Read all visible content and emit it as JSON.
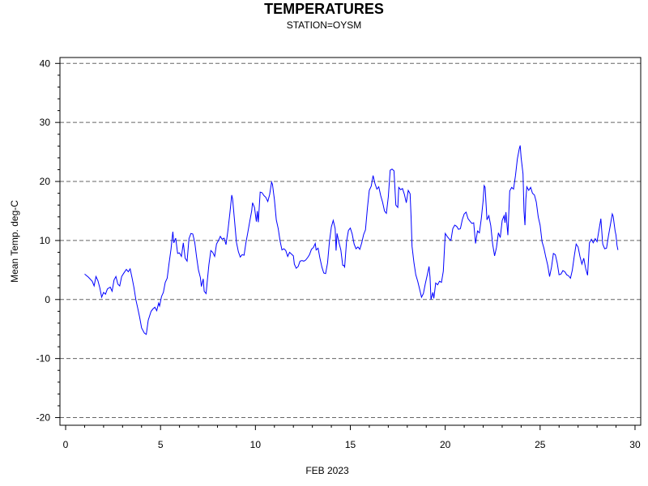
{
  "chart_data": {
    "type": "line",
    "title": "TEMPERATURES",
    "subtitle": "STATION=OYSM",
    "xlabel": "FEB 2023",
    "ylabel": "Mean Temp. deg-C",
    "xlim": [
      -0.3,
      30.3
    ],
    "ylim": [
      -21.3,
      41
    ],
    "xticks": [
      0,
      5,
      10,
      15,
      20,
      25,
      30
    ],
    "yticks": [
      -20,
      -10,
      0,
      10,
      20,
      30,
      40
    ],
    "grid": "horizontal dashed at major y ticks",
    "line_color": "#0000ff",
    "series": [
      {
        "name": "",
        "points": [
          [
            1.0,
            4.3
          ],
          [
            1.2,
            3.8
          ],
          [
            1.4,
            3.1
          ],
          [
            1.5,
            2.3
          ],
          [
            1.6,
            3.9
          ],
          [
            1.7,
            3.2
          ],
          [
            1.8,
            2.0
          ],
          [
            1.9,
            0.4
          ],
          [
            2.0,
            1.2
          ],
          [
            2.1,
            0.9
          ],
          [
            2.2,
            1.8
          ],
          [
            2.35,
            2.1
          ],
          [
            2.45,
            1.4
          ],
          [
            2.55,
            3.3
          ],
          [
            2.65,
            3.9
          ],
          [
            2.75,
            2.6
          ],
          [
            2.85,
            2.3
          ],
          [
            2.95,
            3.9
          ],
          [
            3.05,
            4.4
          ],
          [
            3.2,
            5.1
          ],
          [
            3.3,
            4.7
          ],
          [
            3.4,
            5.2
          ],
          [
            3.5,
            3.7
          ],
          [
            3.6,
            2.0
          ],
          [
            3.7,
            0.0
          ],
          [
            3.8,
            -1.5
          ],
          [
            3.9,
            -3.0
          ],
          [
            4.0,
            -4.8
          ],
          [
            4.15,
            -5.7
          ],
          [
            4.25,
            -5.9
          ],
          [
            4.35,
            -3.5
          ],
          [
            4.5,
            -2.0
          ],
          [
            4.6,
            -1.6
          ],
          [
            4.7,
            -1.3
          ],
          [
            4.8,
            -1.9
          ],
          [
            4.9,
            -0.6
          ],
          [
            4.95,
            -1.1
          ],
          [
            5.05,
            0.5
          ],
          [
            5.15,
            1.2
          ],
          [
            5.25,
            2.9
          ],
          [
            5.35,
            3.6
          ],
          [
            5.45,
            6.1
          ],
          [
            5.55,
            8.5
          ],
          [
            5.65,
            11.5
          ],
          [
            5.7,
            9.6
          ],
          [
            5.8,
            10.4
          ],
          [
            5.9,
            7.8
          ],
          [
            6.0,
            7.9
          ],
          [
            6.1,
            7.3
          ],
          [
            6.2,
            9.6
          ],
          [
            6.3,
            7.0
          ],
          [
            6.4,
            6.5
          ],
          [
            6.5,
            10.3
          ],
          [
            6.6,
            11.2
          ],
          [
            6.7,
            11.1
          ],
          [
            6.8,
            9.7
          ],
          [
            6.9,
            7.2
          ],
          [
            7.0,
            5.0
          ],
          [
            7.1,
            3.7
          ],
          [
            7.15,
            2.2
          ],
          [
            7.25,
            3.5
          ],
          [
            7.3,
            1.4
          ],
          [
            7.4,
            1.0
          ],
          [
            7.45,
            2.7
          ],
          [
            7.55,
            5.9
          ],
          [
            7.65,
            8.3
          ],
          [
            7.75,
            8.0
          ],
          [
            7.85,
            7.3
          ],
          [
            7.95,
            9.4
          ],
          [
            8.05,
            10.0
          ],
          [
            8.15,
            10.7
          ],
          [
            8.25,
            10.2
          ],
          [
            8.35,
            10.4
          ],
          [
            8.45,
            9.3
          ],
          [
            8.55,
            11.7
          ],
          [
            8.65,
            14.5
          ],
          [
            8.75,
            17.7
          ],
          [
            8.8,
            17.0
          ],
          [
            8.9,
            13.3
          ],
          [
            9.0,
            9.7
          ],
          [
            9.1,
            8.1
          ],
          [
            9.2,
            7.2
          ],
          [
            9.3,
            7.6
          ],
          [
            9.4,
            7.5
          ],
          [
            9.5,
            9.6
          ],
          [
            9.6,
            11.4
          ],
          [
            9.7,
            13.2
          ],
          [
            9.8,
            15.0
          ],
          [
            9.85,
            16.4
          ],
          [
            9.95,
            15.6
          ],
          [
            10.05,
            13.2
          ],
          [
            10.1,
            15.0
          ],
          [
            10.15,
            13.1
          ],
          [
            10.25,
            18.2
          ],
          [
            10.35,
            18.1
          ],
          [
            10.45,
            17.6
          ],
          [
            10.55,
            17.3
          ],
          [
            10.65,
            16.6
          ],
          [
            10.75,
            17.8
          ],
          [
            10.85,
            19.9
          ],
          [
            10.9,
            19.5
          ],
          [
            11.0,
            16.9
          ],
          [
            11.1,
            13.5
          ],
          [
            11.2,
            12.0
          ],
          [
            11.3,
            9.9
          ],
          [
            11.4,
            8.4
          ],
          [
            11.5,
            8.6
          ],
          [
            11.6,
            8.3
          ],
          [
            11.7,
            7.3
          ],
          [
            11.8,
            8.0
          ],
          [
            11.9,
            7.7
          ],
          [
            12.0,
            7.4
          ],
          [
            12.05,
            6.0
          ],
          [
            12.15,
            5.3
          ],
          [
            12.25,
            5.6
          ],
          [
            12.35,
            6.5
          ],
          [
            12.45,
            6.6
          ],
          [
            12.55,
            6.5
          ],
          [
            12.65,
            6.7
          ],
          [
            12.75,
            7.1
          ],
          [
            12.85,
            7.6
          ],
          [
            12.95,
            8.5
          ],
          [
            13.05,
            8.8
          ],
          [
            13.15,
            9.5
          ],
          [
            13.2,
            8.4
          ],
          [
            13.3,
            8.7
          ],
          [
            13.4,
            7.0
          ],
          [
            13.5,
            5.5
          ],
          [
            13.6,
            4.5
          ],
          [
            13.7,
            4.4
          ],
          [
            13.8,
            6.2
          ],
          [
            13.9,
            9.8
          ],
          [
            14.0,
            12.3
          ],
          [
            14.1,
            13.4
          ],
          [
            14.2,
            12.0
          ],
          [
            14.25,
            8.3
          ],
          [
            14.3,
            11.2
          ],
          [
            14.4,
            9.7
          ],
          [
            14.5,
            8.4
          ],
          [
            14.6,
            5.8
          ],
          [
            14.65,
            5.8
          ],
          [
            14.7,
            5.5
          ],
          [
            14.8,
            9.8
          ],
          [
            14.9,
            11.7
          ],
          [
            15.0,
            12.1
          ],
          [
            15.1,
            11.1
          ],
          [
            15.2,
            9.4
          ],
          [
            15.3,
            8.6
          ],
          [
            15.4,
            8.9
          ],
          [
            15.5,
            8.5
          ],
          [
            15.6,
            9.6
          ],
          [
            15.7,
            11.0
          ],
          [
            15.8,
            11.8
          ],
          [
            15.9,
            15.5
          ],
          [
            16.0,
            18.5
          ],
          [
            16.1,
            19.2
          ],
          [
            16.2,
            21.0
          ],
          [
            16.3,
            19.6
          ],
          [
            16.4,
            18.7
          ],
          [
            16.5,
            19.1
          ],
          [
            16.6,
            17.6
          ],
          [
            16.7,
            16.5
          ],
          [
            16.8,
            15.0
          ],
          [
            16.9,
            14.6
          ],
          [
            17.0,
            17.4
          ],
          [
            17.1,
            21.9
          ],
          [
            17.2,
            22.1
          ],
          [
            17.3,
            21.8
          ],
          [
            17.4,
            16.0
          ],
          [
            17.5,
            15.6
          ],
          [
            17.55,
            19.0
          ],
          [
            17.65,
            18.6
          ],
          [
            17.75,
            18.8
          ],
          [
            17.85,
            17.8
          ],
          [
            17.95,
            16.4
          ],
          [
            18.05,
            18.5
          ],
          [
            18.15,
            17.9
          ],
          [
            18.2,
            14.0
          ],
          [
            18.25,
            9.0
          ],
          [
            18.35,
            6.3
          ],
          [
            18.45,
            4.2
          ],
          [
            18.55,
            3.1
          ],
          [
            18.65,
            1.8
          ],
          [
            18.75,
            0.4
          ],
          [
            18.85,
            1.0
          ],
          [
            18.95,
            2.7
          ],
          [
            19.05,
            4.1
          ],
          [
            19.15,
            5.6
          ],
          [
            19.2,
            3.8
          ],
          [
            19.25,
            0.0
          ],
          [
            19.35,
            1.2
          ],
          [
            19.4,
            0.2
          ],
          [
            19.5,
            2.8
          ],
          [
            19.6,
            2.5
          ],
          [
            19.7,
            3.1
          ],
          [
            19.8,
            2.9
          ],
          [
            19.9,
            4.8
          ],
          [
            20.0,
            11.2
          ],
          [
            20.1,
            10.7
          ],
          [
            20.2,
            10.3
          ],
          [
            20.3,
            10.0
          ],
          [
            20.4,
            12.0
          ],
          [
            20.5,
            12.6
          ],
          [
            20.6,
            12.4
          ],
          [
            20.7,
            11.9
          ],
          [
            20.8,
            12.0
          ],
          [
            20.9,
            13.5
          ],
          [
            21.0,
            14.5
          ],
          [
            21.1,
            14.8
          ],
          [
            21.2,
            13.7
          ],
          [
            21.3,
            13.3
          ],
          [
            21.4,
            12.9
          ],
          [
            21.5,
            13.0
          ],
          [
            21.6,
            9.5
          ],
          [
            21.7,
            11.6
          ],
          [
            21.8,
            11.3
          ],
          [
            21.9,
            13.7
          ],
          [
            22.0,
            16.8
          ],
          [
            22.05,
            19.3
          ],
          [
            22.1,
            19.0
          ],
          [
            22.2,
            13.5
          ],
          [
            22.3,
            14.2
          ],
          [
            22.4,
            12.5
          ],
          [
            22.5,
            9.4
          ],
          [
            22.6,
            7.4
          ],
          [
            22.7,
            8.8
          ],
          [
            22.8,
            11.3
          ],
          [
            22.9,
            10.5
          ],
          [
            23.0,
            13.4
          ],
          [
            23.1,
            14.2
          ],
          [
            23.15,
            13.0
          ],
          [
            23.2,
            14.8
          ],
          [
            23.3,
            10.9
          ],
          [
            23.4,
            18.4
          ],
          [
            23.5,
            19.0
          ],
          [
            23.6,
            18.7
          ],
          [
            23.7,
            21.0
          ],
          [
            23.8,
            23.8
          ],
          [
            23.9,
            25.5
          ],
          [
            23.95,
            26.1
          ],
          [
            24.0,
            24.0
          ],
          [
            24.1,
            21.3
          ],
          [
            24.15,
            15.0
          ],
          [
            24.2,
            12.6
          ],
          [
            24.25,
            17.0
          ],
          [
            24.3,
            19.1
          ],
          [
            24.4,
            18.5
          ],
          [
            24.5,
            19.0
          ],
          [
            24.6,
            18.0
          ],
          [
            24.7,
            17.7
          ],
          [
            24.8,
            16.5
          ],
          [
            24.9,
            14.0
          ],
          [
            25.0,
            12.6
          ],
          [
            25.1,
            9.8
          ],
          [
            25.2,
            8.7
          ],
          [
            25.3,
            7.2
          ],
          [
            25.4,
            5.8
          ],
          [
            25.5,
            3.9
          ],
          [
            25.6,
            5.5
          ],
          [
            25.7,
            7.8
          ],
          [
            25.8,
            7.6
          ],
          [
            25.9,
            6.2
          ],
          [
            26.0,
            4.2
          ],
          [
            26.1,
            4.3
          ],
          [
            26.2,
            4.9
          ],
          [
            26.3,
            4.7
          ],
          [
            26.4,
            4.2
          ],
          [
            26.5,
            4.0
          ],
          [
            26.6,
            3.6
          ],
          [
            26.7,
            5.0
          ],
          [
            26.8,
            7.4
          ],
          [
            26.9,
            9.4
          ],
          [
            27.0,
            8.9
          ],
          [
            27.1,
            7.3
          ],
          [
            27.2,
            6.0
          ],
          [
            27.3,
            7.0
          ],
          [
            27.4,
            5.3
          ],
          [
            27.5,
            4.1
          ],
          [
            27.6,
            9.6
          ],
          [
            27.7,
            10.2
          ],
          [
            27.8,
            9.6
          ],
          [
            27.9,
            10.3
          ],
          [
            28.0,
            9.8
          ],
          [
            28.1,
            11.8
          ],
          [
            28.2,
            13.7
          ],
          [
            28.3,
            9.4
          ],
          [
            28.4,
            8.6
          ],
          [
            28.5,
            8.7
          ],
          [
            28.6,
            10.8
          ],
          [
            28.7,
            12.6
          ],
          [
            28.8,
            14.5
          ],
          [
            28.85,
            14.1
          ],
          [
            28.95,
            11.6
          ],
          [
            29.0,
            10.9
          ],
          [
            29.05,
            9.2
          ],
          [
            29.1,
            8.4
          ]
        ]
      }
    ]
  }
}
